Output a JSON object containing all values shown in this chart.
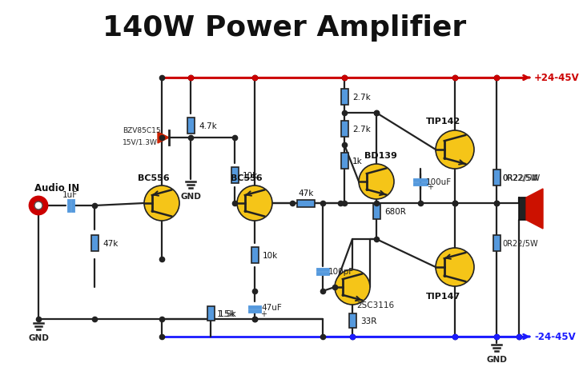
{
  "title": "140W Power Amplifier",
  "title_fontsize": 26,
  "title_fontweight": "bold",
  "bg_color": "#ffffff",
  "wire_color_red": "#cc0000",
  "wire_color_blue": "#1a1aff",
  "wire_color_black": "#222222",
  "component_fill": "#f5c518",
  "component_stroke": "#222222",
  "resistor_fill": "#5599dd",
  "cap_fill": "#5599dd",
  "label_color": "#111111",
  "plus_label": "+24-45V",
  "minus_label": "-24-45V",
  "gnd_label": "GND",
  "audio_label": "Audio IN",
  "lw": 1.6,
  "clw": 1.2,
  "dot_size": 4.5
}
